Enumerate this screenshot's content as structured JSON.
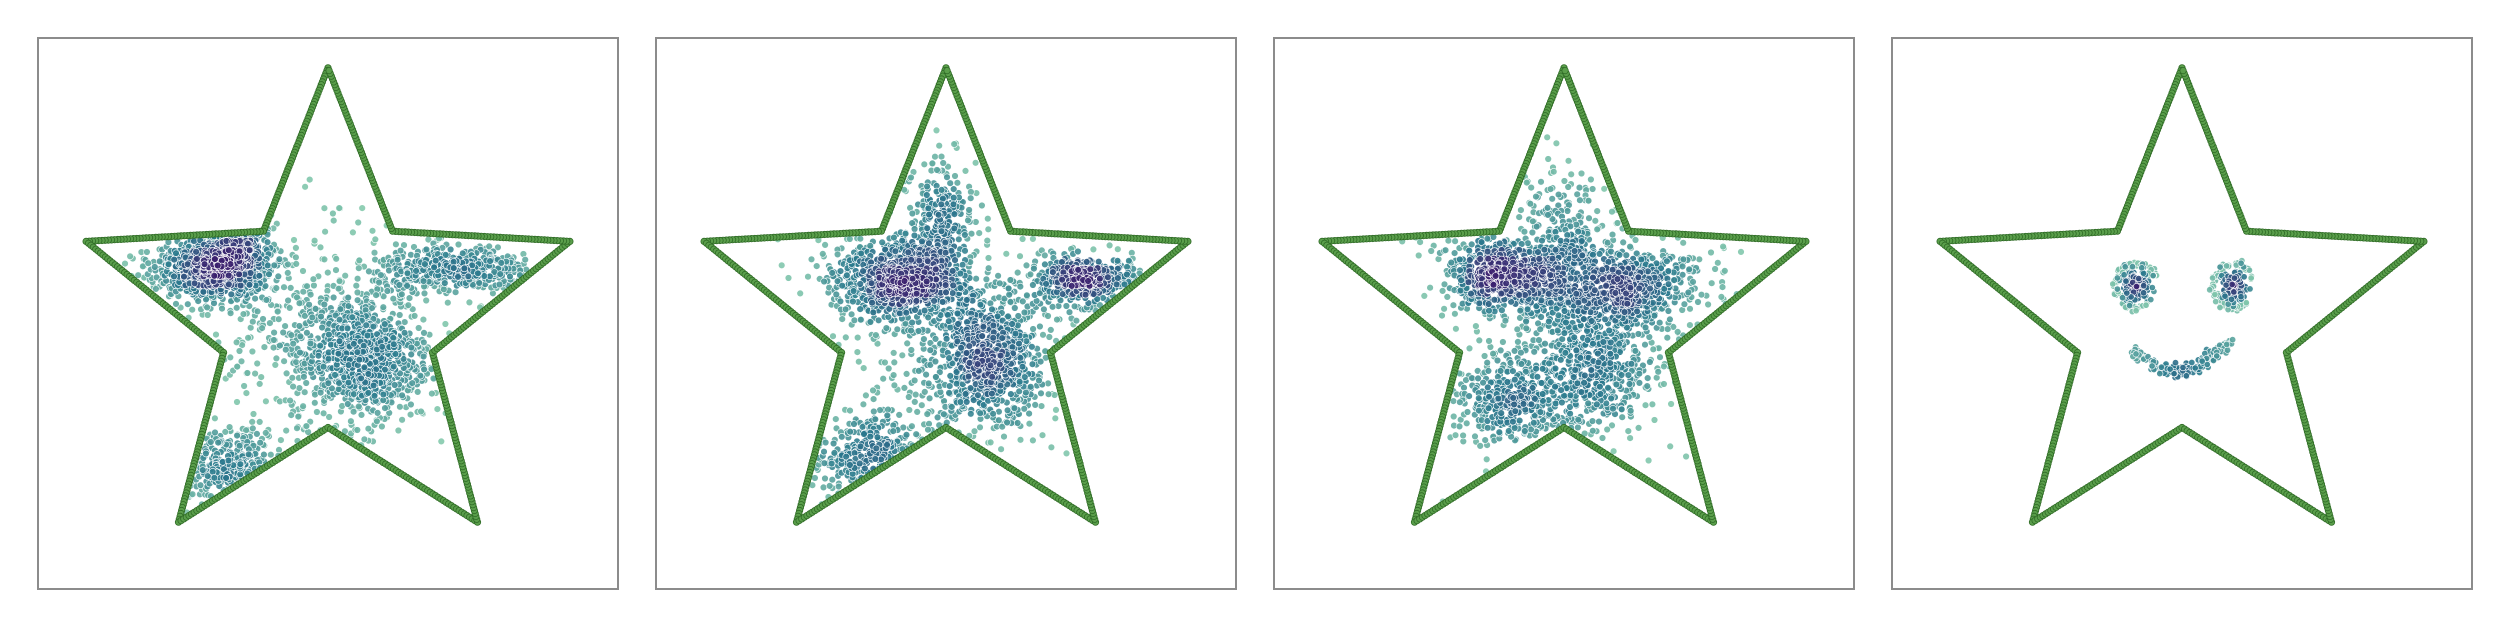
{
  "chart_data": [
    {
      "type": "scatter",
      "boundary": "five-point-star",
      "grid": false,
      "legend": "none",
      "xlim": [
        0,
        1
      ],
      "ylim": [
        0,
        1
      ],
      "colors": {
        "boundary": "#5a9e4b",
        "boundary_edge": "#2f6b26",
        "dense": "#3b1f6e",
        "mid": "#2b7a8e",
        "sparse": "#8cd0b0"
      },
      "clusters": [
        {
          "x": 0.3,
          "y": 0.58,
          "sx": 0.05,
          "sy": 0.03,
          "n": 800
        },
        {
          "x": 0.34,
          "y": 0.68,
          "sx": 0.025,
          "sy": 0.06,
          "n": 260
        },
        {
          "x": 0.56,
          "y": 0.42,
          "sx": 0.06,
          "sy": 0.06,
          "n": 800
        },
        {
          "x": 0.72,
          "y": 0.58,
          "sx": 0.07,
          "sy": 0.022,
          "n": 420
        },
        {
          "x": 0.33,
          "y": 0.22,
          "sx": 0.05,
          "sy": 0.035,
          "n": 280
        },
        {
          "x": 0.45,
          "y": 0.47,
          "sx": 0.1,
          "sy": 0.1,
          "n": 320
        }
      ]
    },
    {
      "type": "scatter",
      "boundary": "five-point-star",
      "grid": false,
      "legend": "none",
      "xlim": [
        0,
        1
      ],
      "ylim": [
        0,
        1
      ],
      "colors": {
        "boundary": "#5a9e4b",
        "boundary_edge": "#2f6b26",
        "dense": "#3b1f6e",
        "mid": "#2b7a8e",
        "sparse": "#8cd0b0"
      },
      "clusters": [
        {
          "x": 0.42,
          "y": 0.56,
          "sx": 0.06,
          "sy": 0.035,
          "n": 750
        },
        {
          "x": 0.49,
          "y": 0.67,
          "sx": 0.03,
          "sy": 0.06,
          "n": 260
        },
        {
          "x": 0.57,
          "y": 0.41,
          "sx": 0.05,
          "sy": 0.06,
          "n": 650
        },
        {
          "x": 0.74,
          "y": 0.56,
          "sx": 0.05,
          "sy": 0.022,
          "n": 420
        },
        {
          "x": 0.37,
          "y": 0.24,
          "sx": 0.05,
          "sy": 0.04,
          "n": 260
        },
        {
          "x": 0.5,
          "y": 0.45,
          "sx": 0.12,
          "sy": 0.12,
          "n": 320
        }
      ]
    },
    {
      "type": "scatter",
      "boundary": "five-point-star",
      "grid": false,
      "legend": "none",
      "xlim": [
        0,
        1
      ],
      "ylim": [
        0,
        1
      ],
      "colors": {
        "boundary": "#5a9e4b",
        "boundary_edge": "#2f6b26",
        "dense": "#3b1f6e",
        "mid": "#2b7a8e",
        "sparse": "#8cd0b0"
      },
      "clusters": [
        {
          "x": 0.39,
          "y": 0.57,
          "sx": 0.045,
          "sy": 0.03,
          "n": 600
        },
        {
          "x": 0.6,
          "y": 0.55,
          "sx": 0.07,
          "sy": 0.035,
          "n": 600
        },
        {
          "x": 0.55,
          "y": 0.4,
          "sx": 0.06,
          "sy": 0.06,
          "n": 450
        },
        {
          "x": 0.4,
          "y": 0.34,
          "sx": 0.05,
          "sy": 0.04,
          "n": 300
        },
        {
          "x": 0.5,
          "y": 0.62,
          "sx": 0.04,
          "sy": 0.07,
          "n": 300
        },
        {
          "x": 0.5,
          "y": 0.47,
          "sx": 0.11,
          "sy": 0.11,
          "n": 350
        }
      ]
    },
    {
      "type": "scatter",
      "boundary": "five-point-star",
      "grid": false,
      "legend": "none",
      "xlim": [
        0,
        1
      ],
      "ylim": [
        0,
        1
      ],
      "colors": {
        "boundary": "#5a9e4b",
        "boundary_edge": "#2f6b26",
        "dense": "#3b1f6e",
        "mid": "#2b7a8e",
        "sparse": "#8cd0b0"
      },
      "eyes": [
        {
          "x": 0.42,
          "y": 0.55,
          "n_core": 140,
          "n_ring": 90
        },
        {
          "x": 0.59,
          "y": 0.55,
          "n_core": 140,
          "n_ring": 90
        }
      ],
      "smile": {
        "x": 0.5,
        "y": 0.43,
        "n": 160
      }
    }
  ]
}
